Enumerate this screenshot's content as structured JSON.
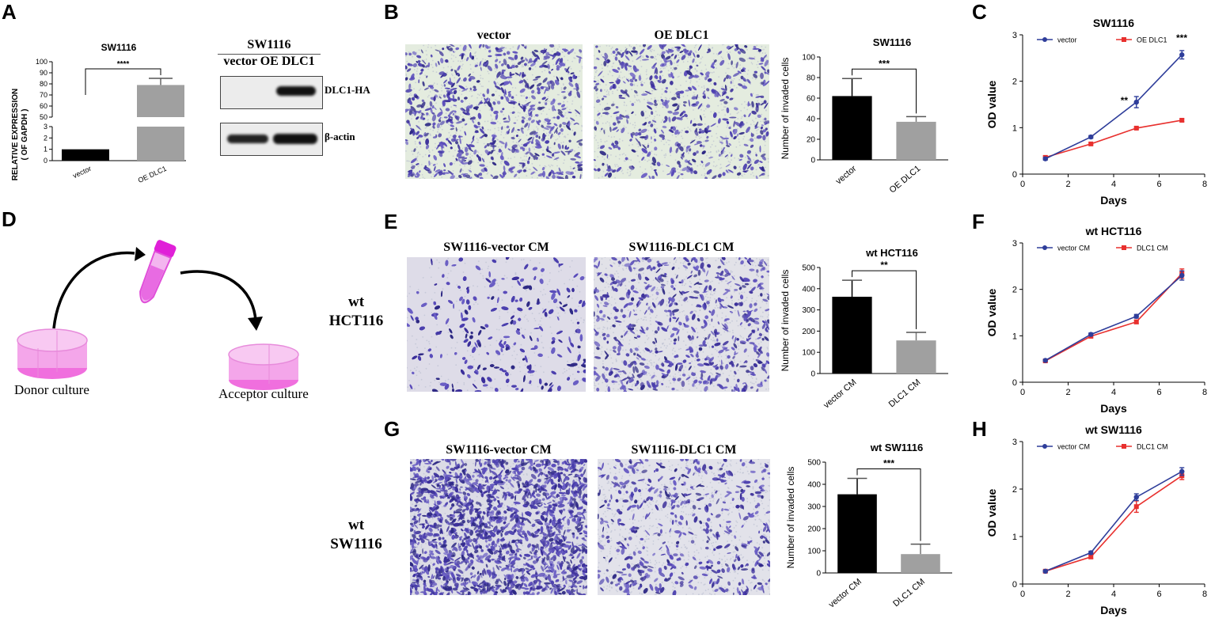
{
  "panel_letters": [
    "A",
    "B",
    "C",
    "D",
    "E",
    "F",
    "G",
    "H"
  ],
  "panelA": {
    "chart": {
      "type": "bar",
      "title": "SW1116",
      "ylabel_line1": "RELATIVE EXPRESSION",
      "ylabel_line2": "( OF GAPDH )",
      "categories": [
        "vector",
        "OE DLC1"
      ],
      "values": [
        1,
        79
      ],
      "error": [
        0,
        6
      ],
      "colors": [
        "#000000",
        "#a0a0a0"
      ],
      "yticks_low": [
        "0",
        "1",
        "2",
        "3"
      ],
      "yticks_high": [
        "50",
        "60",
        "70",
        "80",
        "90",
        "100"
      ],
      "significance": "****"
    },
    "blot": {
      "title": "SW1116",
      "lanes": "vector OE DLC1",
      "band1": "DLC1-HA",
      "band2": "β-actin"
    }
  },
  "panelB": {
    "img_left": "vector",
    "img_right": "OE DLC1",
    "chart": {
      "type": "bar",
      "title": "SW1116",
      "ylabel": "Number of invaded cells",
      "categories": [
        "vector",
        "OE DLC1"
      ],
      "values": [
        62,
        37
      ],
      "error": [
        17,
        5
      ],
      "ylim": [
        0,
        100
      ],
      "yticks": [
        "0",
        "20",
        "40",
        "60",
        "80",
        "100"
      ],
      "colors": [
        "#000000",
        "#a0a0a0"
      ],
      "significance": "***"
    }
  },
  "panelC": {
    "chart": {
      "type": "line",
      "title": "SW1116",
      "xlabel": "Days",
      "ylabel": "OD value",
      "xlim": [
        0,
        8
      ],
      "ylim": [
        0,
        3
      ],
      "xticks": [
        "0",
        "2",
        "4",
        "6",
        "8"
      ],
      "yticks": [
        "0",
        "1",
        "2",
        "3"
      ],
      "series": [
        {
          "name": "vector",
          "color": "#2e3d9a",
          "x": [
            1,
            3,
            5,
            7
          ],
          "y": [
            0.33,
            0.8,
            1.55,
            2.57
          ],
          "err": [
            0.03,
            0.03,
            0.12,
            0.09
          ]
        },
        {
          "name": "OE DLC1",
          "color": "#e8302e",
          "x": [
            1,
            3,
            5,
            7
          ],
          "y": [
            0.36,
            0.65,
            0.99,
            1.16
          ],
          "err": [
            0.03,
            0.02,
            0.02,
            0.03
          ]
        }
      ],
      "annot_mid": "**",
      "annot_legend": "***"
    }
  },
  "panelD": {
    "donor": "Donor culture",
    "acceptor": "Acceptor culture"
  },
  "panelE": {
    "side_line1": "wt",
    "side_line2": "HCT116",
    "img_left": "SW1116-vector CM",
    "img_right": "SW1116-DLC1 CM",
    "chart": {
      "type": "bar",
      "title": "wt HCT116",
      "ylabel": "Number of invaded cells",
      "categories": [
        "vector CM",
        "DLC1 CM"
      ],
      "values": [
        362,
        156
      ],
      "error": [
        78,
        38
      ],
      "ylim": [
        0,
        500
      ],
      "yticks": [
        "0",
        "100",
        "200",
        "300",
        "400",
        "500"
      ],
      "colors": [
        "#000000",
        "#a0a0a0"
      ],
      "significance": "**"
    }
  },
  "panelF": {
    "chart": {
      "type": "line",
      "title": "wt HCT116",
      "xlabel": "Days",
      "ylabel": "OD value",
      "xlim": [
        0,
        8
      ],
      "ylim": [
        0,
        3
      ],
      "xticks": [
        "0",
        "2",
        "4",
        "6",
        "8"
      ],
      "yticks": [
        "0",
        "1",
        "2",
        "3"
      ],
      "series": [
        {
          "name": "vector CM",
          "color": "#2e3d9a",
          "x": [
            1,
            3,
            5,
            7
          ],
          "y": [
            0.47,
            1.03,
            1.42,
            2.3
          ],
          "err": [
            0.02,
            0.03,
            0.04,
            0.1
          ]
        },
        {
          "name": "DLC1 CM",
          "color": "#e8302e",
          "x": [
            1,
            3,
            5,
            7
          ],
          "y": [
            0.46,
            0.99,
            1.3,
            2.34
          ],
          "err": [
            0.02,
            0.03,
            0.04,
            0.1
          ]
        }
      ]
    }
  },
  "panelG": {
    "side_line1": "wt",
    "side_line2": "SW1116",
    "img_left": "SW1116-vector CM",
    "img_right": "SW1116-DLC1 CM",
    "chart": {
      "type": "bar",
      "title": "wt SW1116",
      "ylabel": "Number of invaded cells",
      "categories": [
        "vector CM",
        "DLC1 CM"
      ],
      "values": [
        355,
        85
      ],
      "error": [
        72,
        45
      ],
      "ylim": [
        0,
        500
      ],
      "yticks": [
        "0",
        "100",
        "200",
        "300",
        "400",
        "500"
      ],
      "colors": [
        "#000000",
        "#a0a0a0"
      ],
      "significance": "***"
    }
  },
  "panelH": {
    "chart": {
      "type": "line",
      "title": "wt SW1116",
      "xlabel": "Days",
      "ylabel": "OD value",
      "xlim": [
        0,
        8
      ],
      "ylim": [
        0,
        3
      ],
      "xticks": [
        "0",
        "2",
        "4",
        "6",
        "8"
      ],
      "yticks": [
        "0",
        "1",
        "2",
        "3"
      ],
      "series": [
        {
          "name": "vector CM",
          "color": "#2e3d9a",
          "x": [
            1,
            3,
            5,
            7
          ],
          "y": [
            0.27,
            0.66,
            1.83,
            2.37
          ],
          "err": [
            0.02,
            0.03,
            0.07,
            0.08
          ]
        },
        {
          "name": "DLC1 CM",
          "color": "#e8302e",
          "x": [
            1,
            3,
            5,
            7
          ],
          "y": [
            0.27,
            0.57,
            1.63,
            2.28
          ],
          "err": [
            0.02,
            0.03,
            0.12,
            0.08
          ]
        }
      ]
    }
  }
}
